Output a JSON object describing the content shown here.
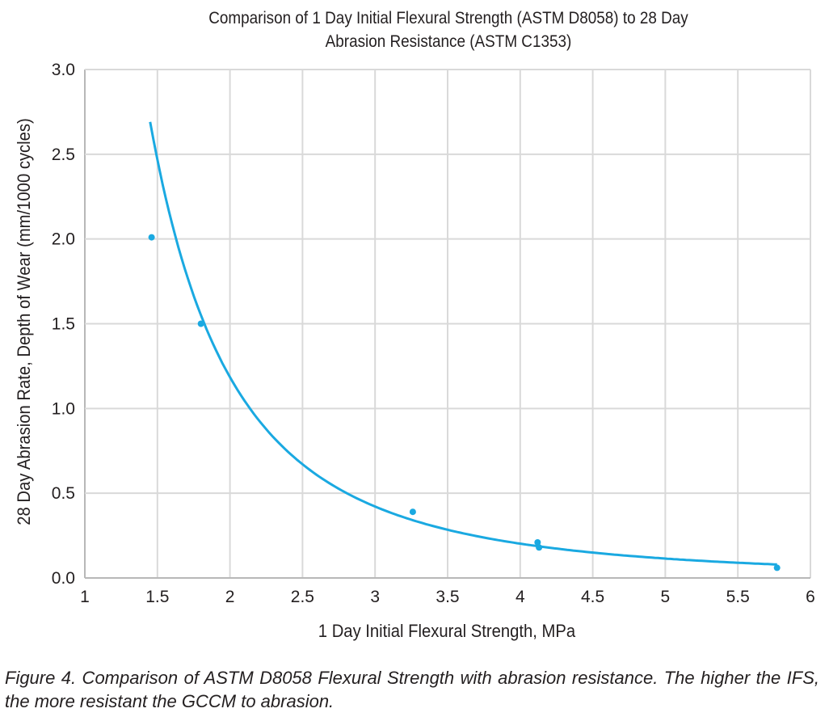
{
  "chart_data": {
    "type": "scatter",
    "title": "Comparison of 1 Day Initial Flexural Strength (ASTM D8058) to 28 Day Abrasion Resistance (ASTM C1353)",
    "title_lines": [
      "Comparison of 1 Day Initial Flexural Strength (ASTM D8058) to 28 Day",
      "Abrasion Resistance (ASTM C1353)"
    ],
    "xlabel": "1 Day Initial Flexural Strength, MPa",
    "ylabel": "28 Day Abrasion Rate, Depth of Wear (mm/1000 cycles)",
    "xlim": [
      1,
      6
    ],
    "ylim": [
      0,
      3.0
    ],
    "x_ticks": [
      "1",
      "1.5",
      "2",
      "2.5",
      "3",
      "3.5",
      "4",
      "4.5",
      "5",
      "5.5",
      "6"
    ],
    "y_ticks": [
      "0.0",
      "0.5",
      "1.0",
      "1.5",
      "2.0",
      "2.5",
      "3.0"
    ],
    "grid": true,
    "color": "#1aa9e1",
    "points": [
      {
        "x": 1.46,
        "y": 2.01
      },
      {
        "x": 1.8,
        "y": 1.5
      },
      {
        "x": 3.26,
        "y": 0.39
      },
      {
        "x": 4.12,
        "y": 0.21
      },
      {
        "x": 4.13,
        "y": 0.18
      },
      {
        "x": 5.77,
        "y": 0.06
      }
    ],
    "trendline": {
      "type": "power",
      "a": 6.94,
      "b": -2.55,
      "x_range": [
        1.45,
        5.77
      ]
    }
  },
  "caption": "Figure 4. Comparison of ASTM D8058 Flexural Strength with abrasion resistance. The higher the IFS, the more resistant the GCCM to abrasion."
}
